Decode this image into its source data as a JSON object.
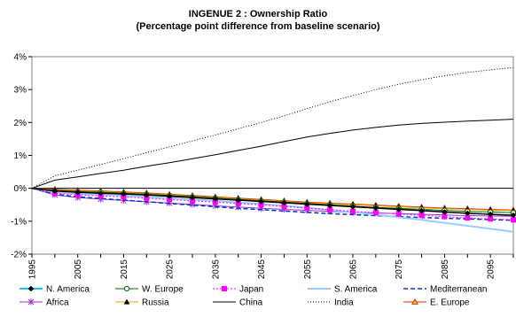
{
  "chart_data": {
    "type": "line",
    "title": "INGENUE 2 : Ownership Ratio",
    "subtitle": "(Percentage point difference from baseline scenario)",
    "xlabel": "",
    "ylabel": "",
    "x": [
      1995,
      2000,
      2005,
      2010,
      2015,
      2020,
      2025,
      2030,
      2035,
      2040,
      2045,
      2050,
      2055,
      2060,
      2065,
      2070,
      2075,
      2080,
      2085,
      2090,
      2095,
      2100
    ],
    "x_tick_labels": [
      "1995",
      "2005",
      "2015",
      "2025",
      "2035",
      "2045",
      "2055",
      "2065",
      "2075",
      "2085",
      "2095"
    ],
    "y_tick_labels": [
      "-2%",
      "-1%",
      "0%",
      "1%",
      "2%",
      "3%",
      "4%"
    ],
    "ylim": [
      -2,
      4
    ],
    "y_unit": "%",
    "grid": "horizontal zero line only",
    "legend_position": "bottom",
    "series": [
      {
        "name": "N. America",
        "color": "#000000",
        "values": [
          0,
          -0.08,
          -0.12,
          -0.15,
          -0.17,
          -0.2,
          -0.24,
          -0.28,
          -0.32,
          -0.36,
          -0.4,
          -0.44,
          -0.48,
          -0.52,
          -0.56,
          -0.6,
          -0.64,
          -0.68,
          -0.72,
          -0.76,
          -0.79,
          -0.82
        ]
      },
      {
        "name": "W. Europe",
        "color": "#000000",
        "values": [
          0,
          -0.07,
          -0.1,
          -0.12,
          -0.15,
          -0.18,
          -0.22,
          -0.26,
          -0.3,
          -0.34,
          -0.38,
          -0.42,
          -0.46,
          -0.5,
          -0.54,
          -0.58,
          -0.61,
          -0.64,
          -0.67,
          -0.7,
          -0.72,
          -0.74
        ]
      },
      {
        "name": "Japan",
        "color": "#ff00ff",
        "values": [
          0,
          -0.15,
          -0.2,
          -0.23,
          -0.26,
          -0.3,
          -0.34,
          -0.38,
          -0.42,
          -0.46,
          -0.5,
          -0.55,
          -0.6,
          -0.65,
          -0.7,
          -0.74,
          -0.78,
          -0.82,
          -0.86,
          -0.9,
          -0.93,
          -0.96
        ]
      },
      {
        "name": "S. America",
        "color": "#99ccff",
        "values": [
          0,
          -0.12,
          -0.16,
          -0.19,
          -0.22,
          -0.26,
          -0.3,
          -0.34,
          -0.38,
          -0.43,
          -0.48,
          -0.53,
          -0.59,
          -0.66,
          -0.73,
          -0.8,
          -0.88,
          -0.96,
          -1.05,
          -1.14,
          -1.23,
          -1.32
        ]
      },
      {
        "name": "Mediterranean",
        "color": "#0033cc",
        "values": [
          0,
          -0.18,
          -0.26,
          -0.31,
          -0.36,
          -0.41,
          -0.46,
          -0.51,
          -0.56,
          -0.61,
          -0.65,
          -0.69,
          -0.73,
          -0.77,
          -0.8,
          -0.83,
          -0.86,
          -0.89,
          -0.91,
          -0.93,
          -0.95,
          -0.97
        ]
      },
      {
        "name": "Africa",
        "color": "#9933cc",
        "values": [
          0,
          -0.2,
          -0.28,
          -0.33,
          -0.37,
          -0.41,
          -0.45,
          -0.49,
          -0.53,
          -0.57,
          -0.61,
          -0.64,
          -0.67,
          -0.7,
          -0.73,
          -0.75,
          -0.77,
          -0.79,
          -0.81,
          -0.83,
          -0.84,
          -0.85
        ]
      },
      {
        "name": "Russia",
        "color": "#ff9900",
        "values": [
          0,
          -0.05,
          -0.08,
          -0.1,
          -0.13,
          -0.16,
          -0.2,
          -0.24,
          -0.28,
          -0.32,
          -0.36,
          -0.4,
          -0.44,
          -0.47,
          -0.5,
          -0.53,
          -0.56,
          -0.59,
          -0.62,
          -0.64,
          -0.66,
          -0.68
        ]
      },
      {
        "name": "China",
        "color": "#000000",
        "values": [
          0,
          0.25,
          0.35,
          0.45,
          0.55,
          0.67,
          0.78,
          0.9,
          1.02,
          1.15,
          1.28,
          1.42,
          1.56,
          1.67,
          1.77,
          1.85,
          1.92,
          1.97,
          2.01,
          2.04,
          2.07,
          2.1
        ]
      },
      {
        "name": "India",
        "color": "#000000",
        "values": [
          0,
          0.38,
          0.55,
          0.72,
          0.9,
          1.08,
          1.26,
          1.44,
          1.62,
          1.81,
          2.0,
          2.2,
          2.42,
          2.63,
          2.82,
          3.0,
          3.16,
          3.3,
          3.42,
          3.52,
          3.6,
          3.67
        ]
      },
      {
        "name": "E. Europe",
        "color": "#cc3300",
        "values": [
          0,
          -0.03,
          -0.06,
          -0.08,
          -0.11,
          -0.14,
          -0.18,
          -0.22,
          -0.26,
          -0.3,
          -0.34,
          -0.38,
          -0.42,
          -0.45,
          -0.48,
          -0.51,
          -0.54,
          -0.57,
          -0.6,
          -0.62,
          -0.64,
          -0.66
        ]
      }
    ]
  }
}
